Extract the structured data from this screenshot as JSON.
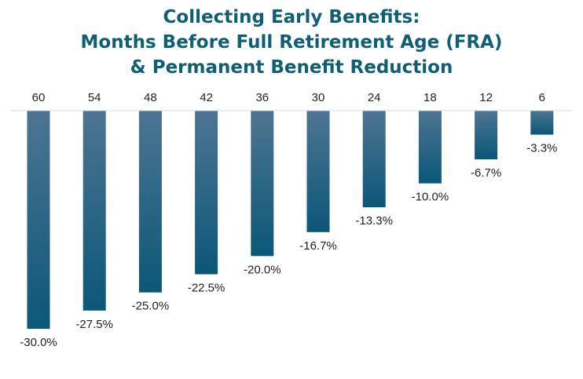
{
  "title_lines": [
    "Collecting Early Benefits:",
    "Months Before Full Retirement Age (FRA)",
    "& Permanent Benefit Reduction"
  ],
  "colors": {
    "title": "#0f5f74",
    "bar_top": "#4d7592",
    "bar_bottom": "#0b5777",
    "axis": "#d9d9d9",
    "text": "#222222"
  },
  "chart_data": {
    "type": "bar",
    "title": "Collecting Early Benefits: Months Before Full Retirement Age (FRA) & Permanent Benefit Reduction",
    "categories": [
      "60",
      "54",
      "48",
      "42",
      "36",
      "30",
      "24",
      "18",
      "12",
      "6"
    ],
    "values": [
      -30.0,
      -27.5,
      -25.0,
      -22.5,
      -20.0,
      -16.7,
      -13.3,
      -10.0,
      -6.7,
      -3.3
    ],
    "data_labels": [
      "-30.0%",
      "-27.5%",
      "-25.0%",
      "-22.5%",
      "-20.0%",
      "-16.7%",
      "-13.3%",
      "-10.0%",
      "-6.7%",
      "-3.3%"
    ],
    "ylim": [
      -30,
      0
    ],
    "xaxis_position": "top",
    "grid": false,
    "legend": "none"
  }
}
